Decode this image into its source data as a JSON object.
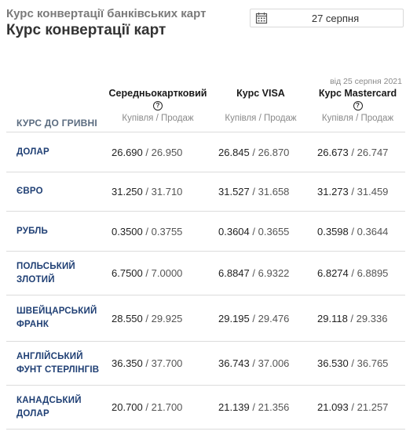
{
  "header": {
    "subtitle": "Курс конвертації банківських карт",
    "title": "Курс конвертації карт"
  },
  "date_picker": {
    "value": "27 серпня",
    "icon": "calendar-icon"
  },
  "table": {
    "row_header": "КУРС ДО ГРИВНІ",
    "columns": [
      {
        "note": "",
        "name": "Середньокартковий",
        "has_help": true,
        "sub": "Купівля / Продаж"
      },
      {
        "note": "",
        "name": "Курс VISA",
        "has_help": false,
        "sub": "Купівля / Продаж"
      },
      {
        "note": "від 25 серпня 2021",
        "name": "Курс Mastercard",
        "has_help": true,
        "sub": "Купівля / Продаж"
      }
    ],
    "separator": "/",
    "rows": [
      {
        "name_lines": [
          "ДОЛАР"
        ],
        "values": [
          [
            "26.690",
            "26.950"
          ],
          [
            "26.845",
            "26.870"
          ],
          [
            "26.673",
            "26.747"
          ]
        ]
      },
      {
        "name_lines": [
          "ЄВРО"
        ],
        "values": [
          [
            "31.250",
            "31.710"
          ],
          [
            "31.527",
            "31.658"
          ],
          [
            "31.273",
            "31.459"
          ]
        ]
      },
      {
        "name_lines": [
          "РУБЛЬ"
        ],
        "values": [
          [
            "0.3500",
            "0.3755"
          ],
          [
            "0.3604",
            "0.3655"
          ],
          [
            "0.3598",
            "0.3644"
          ]
        ]
      },
      {
        "name_lines": [
          "ПОЛЬСЬКИЙ",
          "ЗЛОТИЙ"
        ],
        "values": [
          [
            "6.7500",
            "7.0000"
          ],
          [
            "6.8847",
            "6.9322"
          ],
          [
            "6.8274",
            "6.8895"
          ]
        ]
      },
      {
        "name_lines": [
          "ШВЕЙЦАРСЬКИЙ",
          "ФРАНК"
        ],
        "values": [
          [
            "28.550",
            "29.925"
          ],
          [
            "29.195",
            "29.476"
          ],
          [
            "29.118",
            "29.336"
          ]
        ]
      },
      {
        "name_lines": [
          "АНГЛІЙСЬКИЙ",
          "ФУНТ СТЕРЛІНГІВ"
        ],
        "values": [
          [
            "36.350",
            "37.700"
          ],
          [
            "36.743",
            "37.006"
          ],
          [
            "36.530",
            "36.765"
          ]
        ]
      },
      {
        "name_lines": [
          "КАНАДСЬКИЙ",
          "ДОЛАР"
        ],
        "values": [
          [
            "20.700",
            "21.700"
          ],
          [
            "21.139",
            "21.356"
          ],
          [
            "21.093",
            "21.257"
          ]
        ]
      }
    ]
  },
  "help_icon_glyph": "?"
}
